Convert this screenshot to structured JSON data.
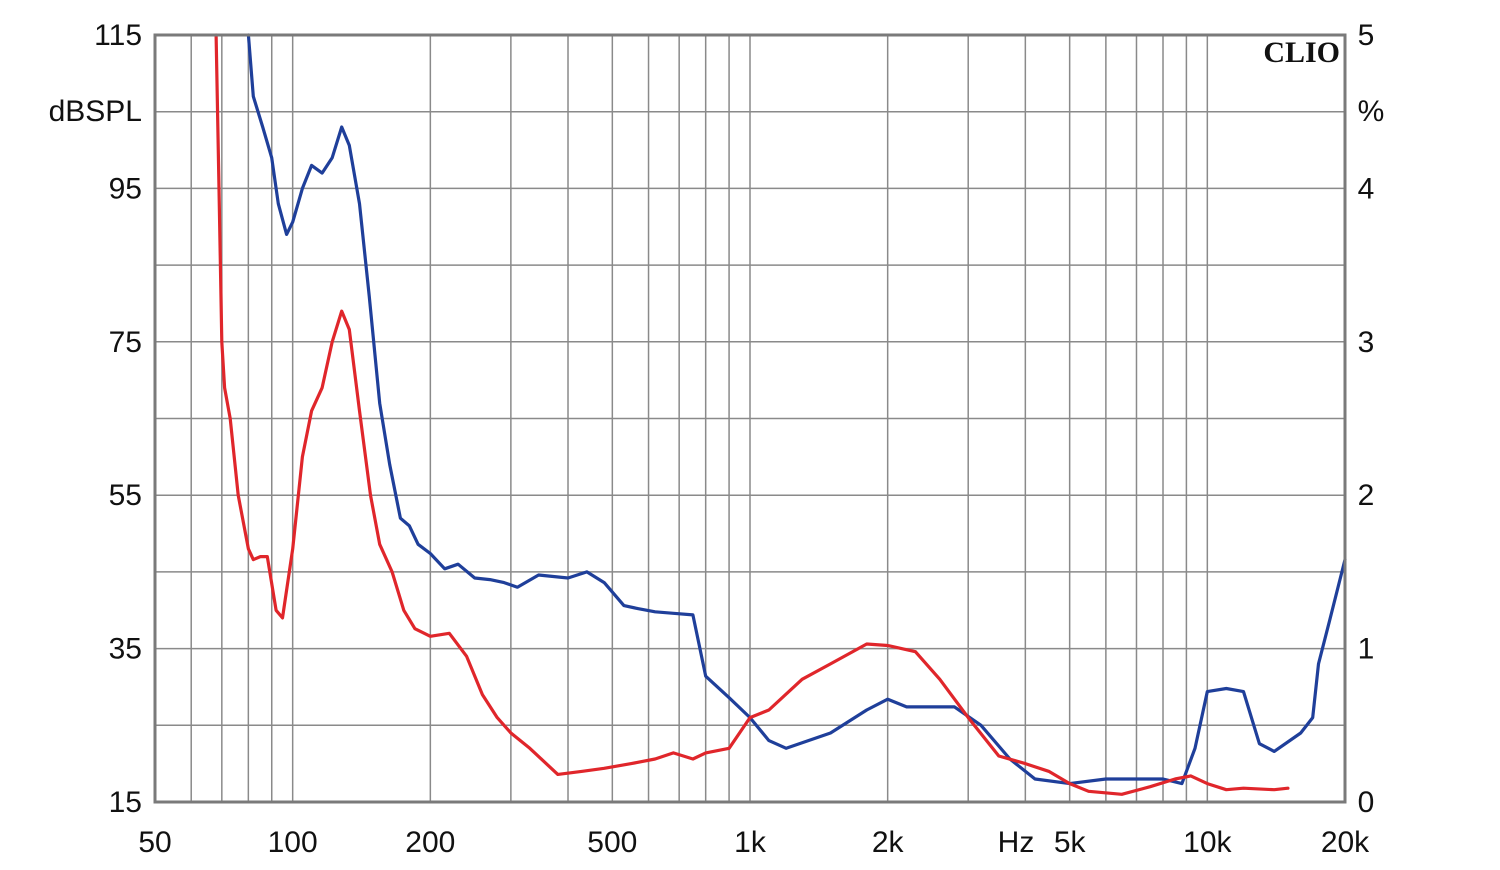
{
  "chart_data": {
    "type": "line",
    "brand": "CLIO",
    "y_left_unit": "dBSPL",
    "y_right_unit": "%",
    "x_unit": "Hz",
    "x_scale": "log",
    "xlim": [
      50,
      20000
    ],
    "ylim_left": [
      15,
      115
    ],
    "ylim_right": [
      0,
      5
    ],
    "grid": true,
    "x_tick_labels": [
      {
        "value": 50,
        "label": "50"
      },
      {
        "value": 100,
        "label": "100"
      },
      {
        "value": 200,
        "label": "200"
      },
      {
        "value": 500,
        "label": "500"
      },
      {
        "value": 1000,
        "label": "1k"
      },
      {
        "value": 2000,
        "label": "2k"
      },
      {
        "value": 5000,
        "label": "5k"
      },
      {
        "value": 10000,
        "label": "10k"
      },
      {
        "value": 20000,
        "label": "20k"
      }
    ],
    "y_left_tick_labels": [
      {
        "value": 115,
        "label": "115"
      },
      {
        "value": 95,
        "label": "95"
      },
      {
        "value": 75,
        "label": "75"
      },
      {
        "value": 55,
        "label": "55"
      },
      {
        "value": 35,
        "label": "35"
      },
      {
        "value": 15,
        "label": "15"
      }
    ],
    "y_right_tick_labels": [
      {
        "value": 5,
        "label": "5"
      },
      {
        "value": 4,
        "label": "4"
      },
      {
        "value": 3,
        "label": "3"
      },
      {
        "value": 2,
        "label": "2"
      },
      {
        "value": 1,
        "label": "1"
      },
      {
        "value": 0,
        "label": "0"
      }
    ],
    "series": [
      {
        "color": "#1f3f9a",
        "axis": "right",
        "points": [
          [
            80,
            5.0
          ],
          [
            82,
            4.6
          ],
          [
            86,
            4.4
          ],
          [
            90,
            4.2
          ],
          [
            93,
            3.9
          ],
          [
            97,
            3.7
          ],
          [
            100,
            3.78
          ],
          [
            105,
            4.0
          ],
          [
            110,
            4.15
          ],
          [
            116,
            4.1
          ],
          [
            122,
            4.2
          ],
          [
            128,
            4.4
          ],
          [
            133,
            4.28
          ],
          [
            140,
            3.9
          ],
          [
            147,
            3.3
          ],
          [
            155,
            2.6
          ],
          [
            163,
            2.2
          ],
          [
            172,
            1.85
          ],
          [
            180,
            1.8
          ],
          [
            188,
            1.68
          ],
          [
            200,
            1.62
          ],
          [
            215,
            1.52
          ],
          [
            230,
            1.55
          ],
          [
            250,
            1.46
          ],
          [
            270,
            1.45
          ],
          [
            290,
            1.43
          ],
          [
            310,
            1.4
          ],
          [
            345,
            1.48
          ],
          [
            400,
            1.46
          ],
          [
            440,
            1.5
          ],
          [
            480,
            1.43
          ],
          [
            530,
            1.28
          ],
          [
            570,
            1.26
          ],
          [
            620,
            1.24
          ],
          [
            680,
            1.23
          ],
          [
            750,
            1.22
          ],
          [
            800,
            0.82
          ],
          [
            900,
            0.68
          ],
          [
            1000,
            0.55
          ],
          [
            1100,
            0.4
          ],
          [
            1200,
            0.35
          ],
          [
            1500,
            0.45
          ],
          [
            1800,
            0.6
          ],
          [
            2000,
            0.67
          ],
          [
            2200,
            0.62
          ],
          [
            2500,
            0.62
          ],
          [
            2800,
            0.62
          ],
          [
            3200,
            0.5
          ],
          [
            3700,
            0.28
          ],
          [
            4200,
            0.15
          ],
          [
            5000,
            0.12
          ],
          [
            6000,
            0.15
          ],
          [
            7000,
            0.15
          ],
          [
            8000,
            0.15
          ],
          [
            8800,
            0.12
          ],
          [
            9400,
            0.35
          ],
          [
            10000,
            0.72
          ],
          [
            11000,
            0.74
          ],
          [
            12000,
            0.72
          ],
          [
            13000,
            0.38
          ],
          [
            14000,
            0.33
          ],
          [
            16000,
            0.45
          ],
          [
            17000,
            0.55
          ],
          [
            17500,
            0.9
          ],
          [
            18500,
            1.18
          ],
          [
            20000,
            1.58
          ]
        ]
      },
      {
        "color": "#e0262b",
        "axis": "right",
        "points": [
          [
            68,
            5.0
          ],
          [
            69,
            4.0
          ],
          [
            70,
            3.0
          ],
          [
            71,
            2.7
          ],
          [
            73,
            2.5
          ],
          [
            76,
            2.0
          ],
          [
            80,
            1.65
          ],
          [
            82,
            1.58
          ],
          [
            85,
            1.6
          ],
          [
            88,
            1.6
          ],
          [
            92,
            1.25
          ],
          [
            95,
            1.2
          ],
          [
            100,
            1.65
          ],
          [
            105,
            2.25
          ],
          [
            110,
            2.55
          ],
          [
            116,
            2.7
          ],
          [
            122,
            3.0
          ],
          [
            128,
            3.2
          ],
          [
            133,
            3.08
          ],
          [
            140,
            2.55
          ],
          [
            148,
            2.0
          ],
          [
            155,
            1.68
          ],
          [
            165,
            1.5
          ],
          [
            175,
            1.25
          ],
          [
            185,
            1.13
          ],
          [
            200,
            1.08
          ],
          [
            220,
            1.1
          ],
          [
            240,
            0.95
          ],
          [
            260,
            0.7
          ],
          [
            280,
            0.55
          ],
          [
            300,
            0.45
          ],
          [
            330,
            0.35
          ],
          [
            380,
            0.18
          ],
          [
            430,
            0.2
          ],
          [
            480,
            0.22
          ],
          [
            550,
            0.25
          ],
          [
            620,
            0.28
          ],
          [
            680,
            0.32
          ],
          [
            750,
            0.28
          ],
          [
            800,
            0.32
          ],
          [
            900,
            0.35
          ],
          [
            1000,
            0.55
          ],
          [
            1100,
            0.6
          ],
          [
            1300,
            0.8
          ],
          [
            1500,
            0.9
          ],
          [
            1800,
            1.03
          ],
          [
            2000,
            1.02
          ],
          [
            2300,
            0.98
          ],
          [
            2600,
            0.8
          ],
          [
            3000,
            0.55
          ],
          [
            3500,
            0.3
          ],
          [
            4000,
            0.25
          ],
          [
            4500,
            0.2
          ],
          [
            5000,
            0.12
          ],
          [
            5500,
            0.07
          ],
          [
            6500,
            0.05
          ],
          [
            7500,
            0.1
          ],
          [
            8500,
            0.15
          ],
          [
            9200,
            0.17
          ],
          [
            10000,
            0.12
          ],
          [
            11000,
            0.08
          ],
          [
            12000,
            0.09
          ],
          [
            14000,
            0.08
          ],
          [
            15000,
            0.09
          ]
        ]
      }
    ]
  }
}
